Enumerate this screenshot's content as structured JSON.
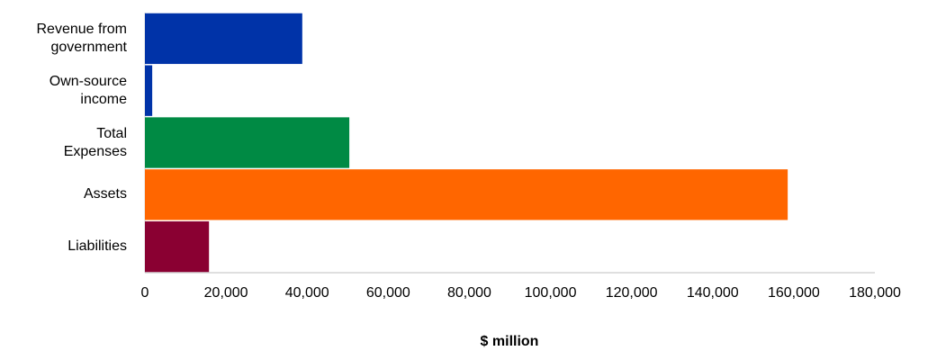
{
  "chart_data": {
    "type": "bar",
    "orientation": "horizontal",
    "x_label": "$ million",
    "categories": [
      "Revenue from\ngovernment",
      "Own-source\nincome",
      "Total\nExpenses",
      "Assets",
      "Liabilities"
    ],
    "values": [
      38800,
      1800,
      50400,
      158500,
      15800
    ],
    "colors": [
      "#0033a8",
      "#0033a8",
      "#008a44",
      "#ff6600",
      "#8a0032"
    ],
    "xlim": [
      0,
      180000
    ],
    "xticks": [
      0,
      {
        "value": 20000,
        "label": "20,000"
      },
      {
        "value": 40000,
        "label": "40,000"
      },
      {
        "value": 60000,
        "label": "60,000"
      },
      {
        "value": 80000,
        "label": "80,000"
      },
      {
        "value": 100000,
        "label": "100,000"
      },
      {
        "value": 120000,
        "label": "120,000"
      },
      {
        "value": 140000,
        "label": "140,000"
      },
      {
        "value": 160000,
        "label": "160,000"
      },
      {
        "value": 180000,
        "label": "180,000"
      }
    ],
    "grid": false
  }
}
